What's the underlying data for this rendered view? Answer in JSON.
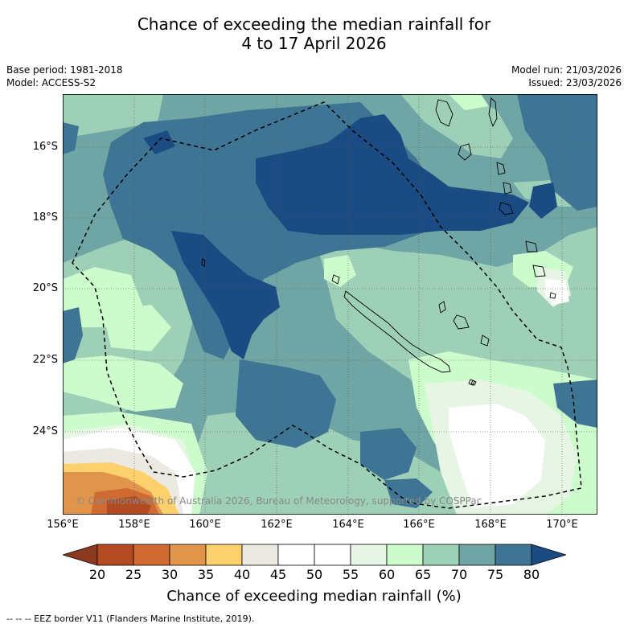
{
  "title_line1": "Chance of exceeding the median rainfall for",
  "title_line2": "4 to 17 April 2026",
  "base_period": "Base period: 1981-2018",
  "model": "Model: ACCESS-S2",
  "model_run": "Model run: 21/03/2026",
  "issued": "Issued: 23/03/2026",
  "lat_labels": [
    "16°S",
    "18°S",
    "20°S",
    "22°S",
    "24°S"
  ],
  "lon_labels": [
    "156°E",
    "158°E",
    "160°E",
    "162°E",
    "164°E",
    "166°E",
    "168°E",
    "170°E"
  ],
  "copyright": "© Commonwealth of Australia 2026, Bureau of Meteorology, supported by COSPPac",
  "colorbar": {
    "ticks": [
      "20",
      "25",
      "30",
      "35",
      "40",
      "45",
      "50",
      "55",
      "60",
      "65",
      "70",
      "75",
      "80"
    ],
    "colors": [
      "#8c3a1f",
      "#b24a22",
      "#cf6a33",
      "#e1954b",
      "#fdd06e",
      "#ece9e2",
      "#ffffff",
      "#ffffff",
      "#e6f5e4",
      "#ccfccc",
      "#9ed0b8",
      "#6fa5a4",
      "#3e7595",
      "#1a4b82"
    ],
    "title": "Chance of exceeding median rainfall (%)"
  },
  "footer": "--  --  -- EEZ border V11 (Flanders Marine Institute, 2019)."
}
